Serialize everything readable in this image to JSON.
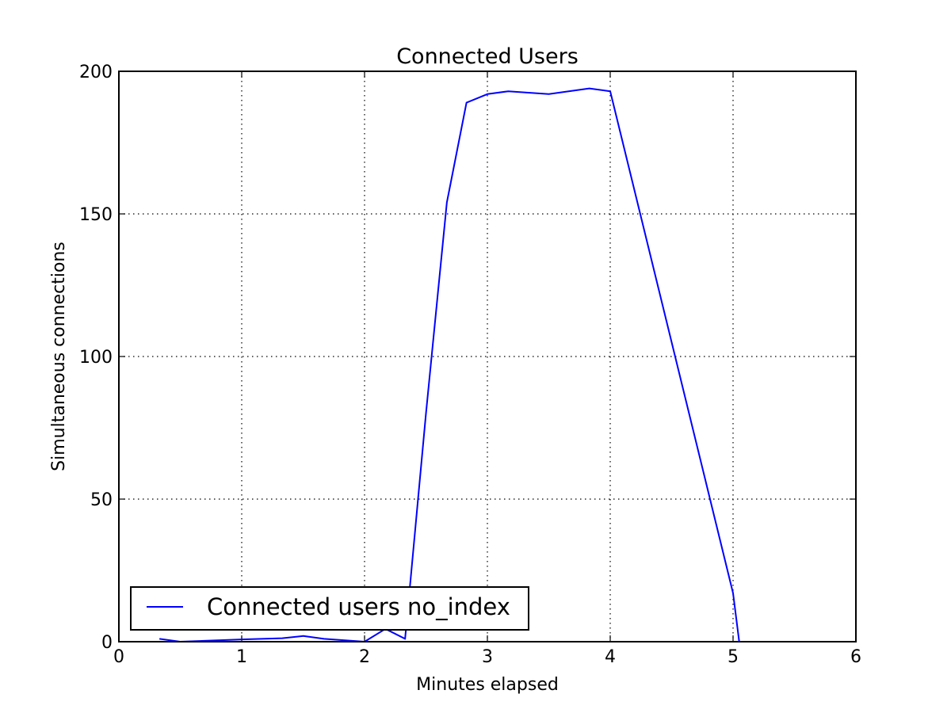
{
  "chart_data": {
    "type": "line",
    "title": "Connected Users",
    "xlabel": "Minutes elapsed",
    "ylabel": "Simultaneous connections",
    "xlim": [
      0,
      6
    ],
    "ylim": [
      0,
      200
    ],
    "xticks": [
      0,
      1,
      2,
      3,
      4,
      5,
      6
    ],
    "yticks": [
      0,
      50,
      100,
      150,
      200
    ],
    "grid": true,
    "legend_position": "lower-left",
    "series": [
      {
        "name": "Connected users no_index",
        "color": "#0000ff",
        "x": [
          0.33,
          0.5,
          1.0,
          1.33,
          1.5,
          1.67,
          2.0,
          2.17,
          2.33,
          2.5,
          2.67,
          2.83,
          3.0,
          3.17,
          3.5,
          3.83,
          4.0,
          5.0,
          5.05
        ],
        "y": [
          1,
          0,
          0.8,
          1.2,
          2,
          1,
          0,
          4.5,
          1,
          80,
          154,
          189,
          192,
          193,
          192,
          194,
          193,
          17,
          0
        ]
      }
    ]
  }
}
